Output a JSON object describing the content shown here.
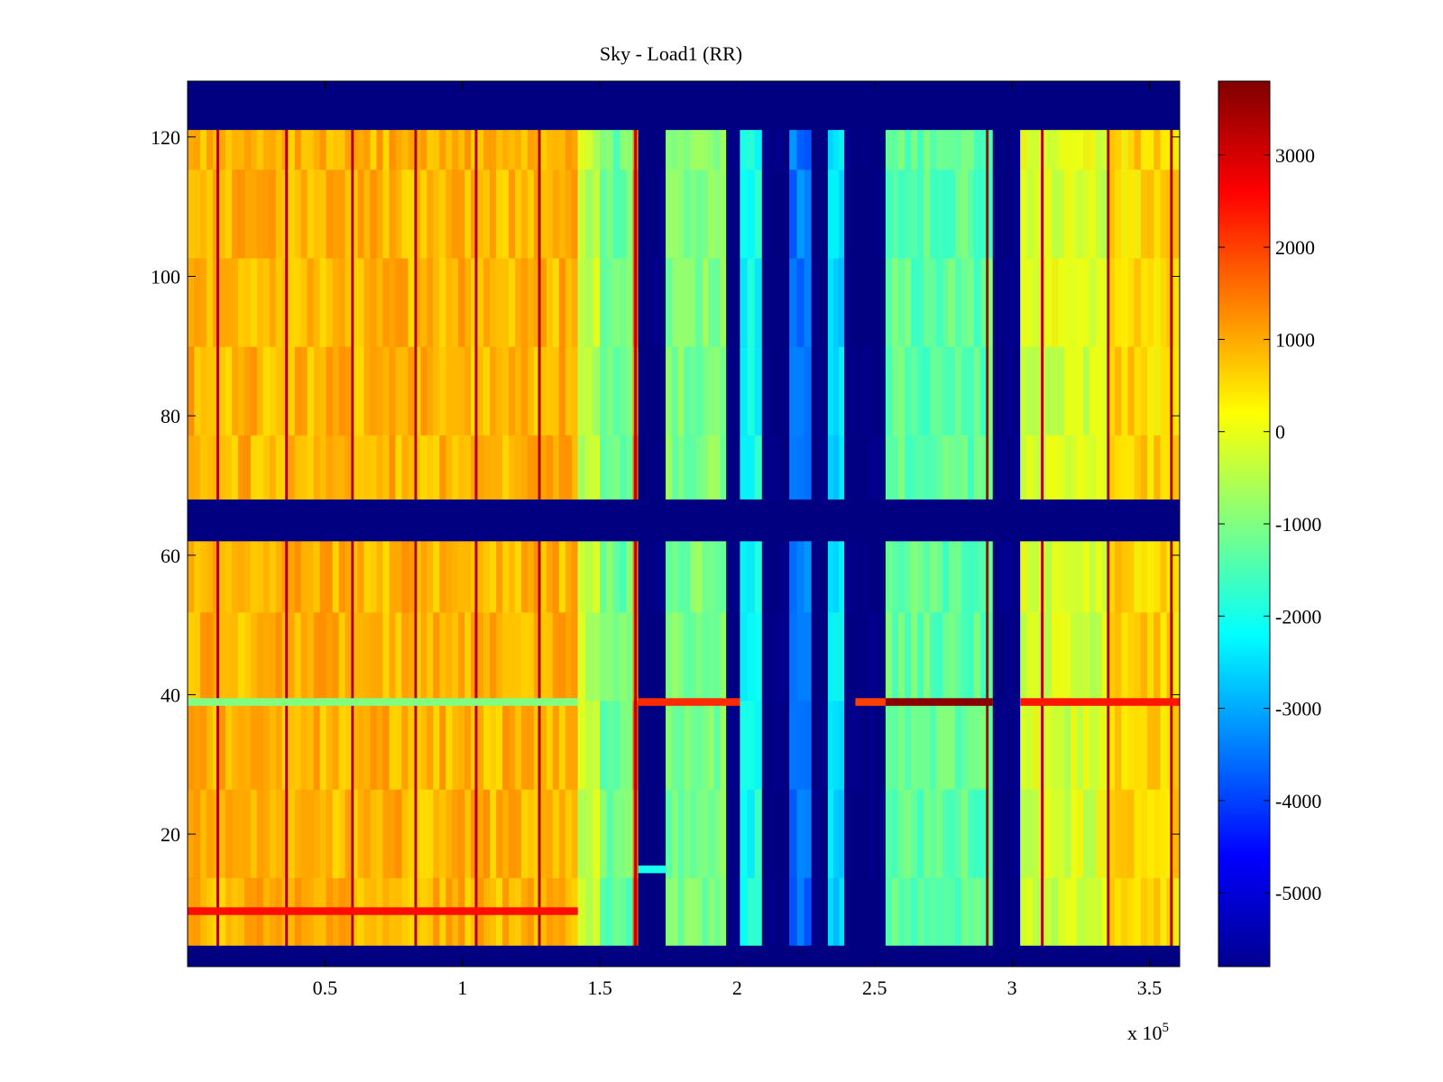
{
  "chart_data": {
    "type": "heatmap",
    "title": "Sky - Load1 (RR)",
    "xlabel": "",
    "ylabel": "",
    "x_multiplier_label": "x 10",
    "x_multiplier_exponent": "5",
    "xlim": [
      0,
      3.61
    ],
    "ylim": [
      1,
      128
    ],
    "x_ticks": [
      0.5,
      1,
      1.5,
      2,
      2.5,
      3,
      3.5
    ],
    "x_tick_labels": [
      "0.5",
      "1",
      "1.5",
      "2",
      "2.5",
      "3",
      "3.5"
    ],
    "y_ticks": [
      20,
      40,
      60,
      80,
      100,
      120
    ],
    "y_tick_labels": [
      "20",
      "40",
      "60",
      "80",
      "100",
      "120"
    ],
    "colorbar": {
      "clim": [
        -5800,
        3800
      ],
      "ticks": [
        3000,
        2000,
        1000,
        0,
        -1000,
        -2000,
        -3000,
        -4000,
        -5000
      ],
      "tick_labels": [
        "3000",
        "2000",
        "1000",
        "0",
        "-1000",
        "-2000",
        "-3000",
        "-4000",
        "-5000"
      ],
      "colormap": "jet"
    },
    "masked_rows": [
      [
        1,
        4
      ],
      [
        62,
        68
      ],
      [
        121,
        128
      ]
    ],
    "column_profile": [
      {
        "x": [
          0.0,
          1.42
        ],
        "value": 900
      },
      {
        "x": [
          1.42,
          1.5
        ],
        "value": -400
      },
      {
        "x": [
          1.5,
          1.62
        ],
        "value": -1200
      },
      {
        "x": [
          1.62,
          1.64
        ],
        "value": 1700
      },
      {
        "x": [
          1.64,
          1.74
        ],
        "value": -5800
      },
      {
        "x": [
          1.74,
          1.96
        ],
        "value": -1000
      },
      {
        "x": [
          1.96,
          2.01
        ],
        "value": -5800
      },
      {
        "x": [
          2.01,
          2.09
        ],
        "value": -2000
      },
      {
        "x": [
          2.09,
          2.19
        ],
        "value": -5800
      },
      {
        "x": [
          2.19,
          2.27
        ],
        "value": -3500
      },
      {
        "x": [
          2.27,
          2.33
        ],
        "value": -5800
      },
      {
        "x": [
          2.33,
          2.39
        ],
        "value": -2500
      },
      {
        "x": [
          2.39,
          2.54
        ],
        "value": -5800
      },
      {
        "x": [
          2.54,
          2.93
        ],
        "value": -1300
      },
      {
        "x": [
          2.93,
          3.03
        ],
        "value": -5800
      },
      {
        "x": [
          3.03,
          3.35
        ],
        "value": -200
      },
      {
        "x": [
          3.35,
          3.61
        ],
        "value": 600
      }
    ],
    "vertical_streaks_x": [
      0.11,
      0.36,
      0.6,
      0.83,
      1.05,
      1.28,
      1.63,
      2.91,
      3.11,
      3.35,
      3.58
    ],
    "horizontal_features": [
      {
        "y": 39,
        "x": [
          0.0,
          1.42
        ],
        "value": -1000
      },
      {
        "y": 39,
        "x": [
          1.64,
          2.01
        ],
        "value": 2200
      },
      {
        "y": 39,
        "x": [
          2.43,
          2.54
        ],
        "value": 2000
      },
      {
        "y": 39,
        "x": [
          2.54,
          2.93
        ],
        "value": 3700
      },
      {
        "y": 39,
        "x": [
          3.03,
          3.61
        ],
        "value": 2400
      },
      {
        "y": 9,
        "x": [
          0.0,
          1.42
        ],
        "value": 2500
      },
      {
        "y": 15,
        "x": [
          1.64,
          1.74
        ],
        "value": -2000
      }
    ]
  }
}
